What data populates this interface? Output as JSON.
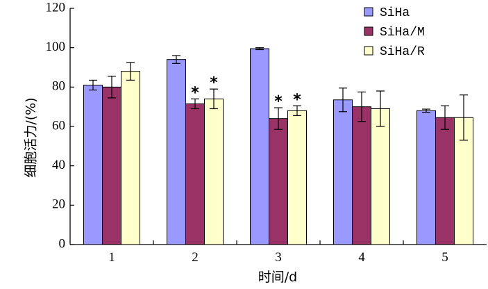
{
  "chart_data": {
    "type": "bar",
    "title": "",
    "xlabel": "时间/d",
    "ylabel": "细胞活力/(%)",
    "categories": [
      "1",
      "2",
      "3",
      "4",
      "5"
    ],
    "ylim": [
      0,
      120
    ],
    "yticks": [
      0,
      20,
      40,
      60,
      80,
      100,
      120
    ],
    "grid": false,
    "legend_position": "top-right",
    "series": [
      {
        "name": "SiHa",
        "color": "#9999ff",
        "values": [
          81,
          94,
          99.5,
          73.5,
          68
        ],
        "errors": [
          2.5,
          2.0,
          0.5,
          6.0,
          0.8
        ],
        "annotations": [
          "",
          "",
          "",
          "",
          ""
        ]
      },
      {
        "name": "SiHa/M",
        "color": "#993366",
        "values": [
          80,
          71.5,
          64,
          70,
          64.5
        ],
        "errors": [
          5.5,
          2.5,
          5.5,
          7.5,
          6.0
        ],
        "annotations": [
          "",
          "*",
          "*",
          "",
          ""
        ]
      },
      {
        "name": "SiHa/R",
        "color": "#ffffcc",
        "values": [
          88,
          74,
          68,
          69,
          64.5
        ],
        "errors": [
          4.5,
          5.0,
          2.5,
          9.0,
          11.5
        ],
        "annotations": [
          "",
          "*",
          "*",
          "",
          ""
        ]
      }
    ]
  }
}
